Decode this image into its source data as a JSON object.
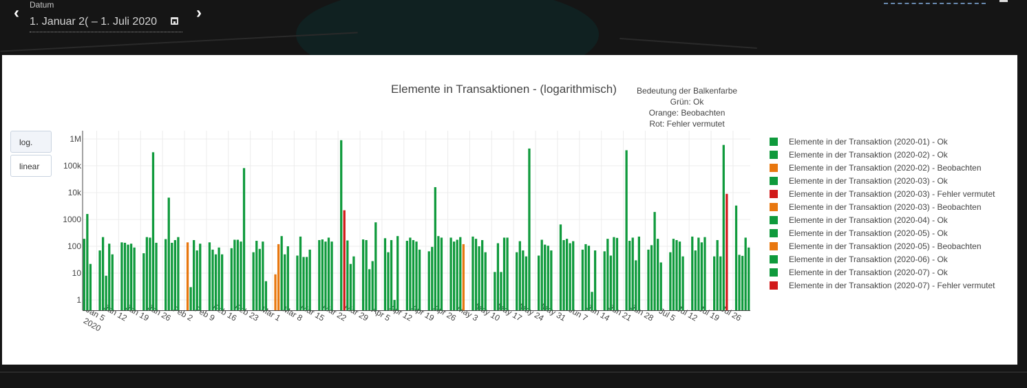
{
  "date_picker": {
    "label": "Datum",
    "value": "1. Januar 2( – 1. Juli 2020",
    "prev_icon": "chevron-left-icon",
    "next_icon": "chevron-right-icon",
    "calendar_icon": "calendar-icon"
  },
  "scale_buttons": {
    "log_label": "log.",
    "linear_label": "linear"
  },
  "colors": {
    "ok": "#0f9a3c",
    "watch": "#e8770f",
    "error": "#d11a1a"
  },
  "legend_note": [
    "Bedeutung der Balkenfarbe",
    "Grün: Ok",
    "Orange: Beobachten",
    "Rot: Fehler vermutet"
  ],
  "chart_data": {
    "type": "bar",
    "title": "Elemente in Transaktionen - (logarithmisch)",
    "y_scale": "log",
    "ylim": [
      0.5,
      1500000
    ],
    "y_ticks": [
      {
        "value": 1,
        "label": "1"
      },
      {
        "value": 10,
        "label": "10"
      },
      {
        "value": 100,
        "label": "100"
      },
      {
        "value": 1000,
        "label": "1000"
      },
      {
        "value": 10000,
        "label": "10k"
      },
      {
        "value": 100000,
        "label": "100k"
      },
      {
        "value": 1000000,
        "label": "1M"
      }
    ],
    "x_start": "2020-01-01",
    "x_end": "2020-07-31",
    "x_ticks": [
      {
        "date": "2020-01-05",
        "label": "Jan 5",
        "sublabel": "2020"
      },
      {
        "date": "2020-01-12",
        "label": "Jan 12"
      },
      {
        "date": "2020-01-19",
        "label": "Jan 19"
      },
      {
        "date": "2020-01-26",
        "label": "Jan 26"
      },
      {
        "date": "2020-02-02",
        "label": "Feb 2"
      },
      {
        "date": "2020-02-09",
        "label": "Feb 9"
      },
      {
        "date": "2020-02-16",
        "label": "Feb 16"
      },
      {
        "date": "2020-02-23",
        "label": "Feb 23"
      },
      {
        "date": "2020-03-01",
        "label": "Mar 1"
      },
      {
        "date": "2020-03-08",
        "label": "Mar 8"
      },
      {
        "date": "2020-03-15",
        "label": "Mar 15"
      },
      {
        "date": "2020-03-22",
        "label": "Mar 22"
      },
      {
        "date": "2020-03-29",
        "label": "Mar 29"
      },
      {
        "date": "2020-04-05",
        "label": "Apr 5"
      },
      {
        "date": "2020-04-12",
        "label": "Apr 12"
      },
      {
        "date": "2020-04-19",
        "label": "Apr 19"
      },
      {
        "date": "2020-04-26",
        "label": "Apr 26"
      },
      {
        "date": "2020-05-03",
        "label": "May 3"
      },
      {
        "date": "2020-05-10",
        "label": "May 10"
      },
      {
        "date": "2020-05-17",
        "label": "May 17"
      },
      {
        "date": "2020-05-24",
        "label": "May 24"
      },
      {
        "date": "2020-05-31",
        "label": "May 31"
      },
      {
        "date": "2020-06-07",
        "label": "Jun 7"
      },
      {
        "date": "2020-06-14",
        "label": "Jun 14"
      },
      {
        "date": "2020-06-21",
        "label": "Jun 21"
      },
      {
        "date": "2020-06-28",
        "label": "Jun 28"
      },
      {
        "date": "2020-07-05",
        "label": "Jul 5"
      },
      {
        "date": "2020-07-12",
        "label": "Jul 12"
      },
      {
        "date": "2020-07-19",
        "label": "Jul 19"
      },
      {
        "date": "2020-07-26",
        "label": "Jul 26"
      }
    ],
    "legend": [
      {
        "name": "Elemente in der Transaktion (2020-01) - Ok",
        "status": "ok"
      },
      {
        "name": "Elemente in der Transaktion (2020-02) - Ok",
        "status": "ok"
      },
      {
        "name": "Elemente in der Transaktion (2020-02) - Beobachten",
        "status": "watch"
      },
      {
        "name": "Elemente in der Transaktion (2020-03) - Ok",
        "status": "ok"
      },
      {
        "name": "Elemente in der Transaktion (2020-03) - Fehler vermutet",
        "status": "error"
      },
      {
        "name": "Elemente in der Transaktion (2020-03) - Beobachten",
        "status": "watch"
      },
      {
        "name": "Elemente in der Transaktion (2020-04) - Ok",
        "status": "ok"
      },
      {
        "name": "Elemente in der Transaktion (2020-05) - Ok",
        "status": "ok"
      },
      {
        "name": "Elemente in der Transaktion (2020-05) - Beobachten",
        "status": "watch"
      },
      {
        "name": "Elemente in der Transaktion (2020-06) - Ok",
        "status": "ok"
      },
      {
        "name": "Elemente in der Transaktion (2020-07) - Ok",
        "status": "ok"
      },
      {
        "name": "Elemente in der Transaktion (2020-07) - Fehler vermutet",
        "status": "error"
      }
    ],
    "bars": [
      {
        "date": "2020-01-01",
        "value": 190,
        "status": "ok"
      },
      {
        "date": "2020-01-02",
        "value": 1600,
        "status": "ok"
      },
      {
        "date": "2020-01-03",
        "value": 22,
        "status": "ok"
      },
      {
        "date": "2020-01-06",
        "value": 70,
        "status": "ok"
      },
      {
        "date": "2020-01-07",
        "value": 220,
        "status": "ok"
      },
      {
        "date": "2020-01-08",
        "value": 8,
        "status": "ok"
      },
      {
        "date": "2020-01-09",
        "value": 125,
        "status": "ok"
      },
      {
        "date": "2020-01-10",
        "value": 50,
        "status": "ok"
      },
      {
        "date": "2020-01-13",
        "value": 140,
        "status": "ok"
      },
      {
        "date": "2020-01-14",
        "value": 135,
        "status": "ok"
      },
      {
        "date": "2020-01-15",
        "value": 115,
        "status": "ok"
      },
      {
        "date": "2020-01-16",
        "value": 125,
        "status": "ok"
      },
      {
        "date": "2020-01-17",
        "value": 90,
        "status": "ok"
      },
      {
        "date": "2020-01-20",
        "value": 55,
        "status": "ok"
      },
      {
        "date": "2020-01-21",
        "value": 220,
        "status": "ok"
      },
      {
        "date": "2020-01-22",
        "value": 210,
        "status": "ok"
      },
      {
        "date": "2020-01-23",
        "value": 320000,
        "status": "ok"
      },
      {
        "date": "2020-01-24",
        "value": 135,
        "status": "ok"
      },
      {
        "date": "2020-01-27",
        "value": 185,
        "status": "ok"
      },
      {
        "date": "2020-01-28",
        "value": 6500,
        "status": "ok"
      },
      {
        "date": "2020-01-29",
        "value": 135,
        "status": "ok"
      },
      {
        "date": "2020-01-30",
        "value": 170,
        "status": "ok"
      },
      {
        "date": "2020-01-31",
        "value": 220,
        "status": "ok"
      },
      {
        "date": "2020-02-03",
        "value": 140,
        "status": "watch"
      },
      {
        "date": "2020-02-04",
        "value": 3,
        "status": "ok"
      },
      {
        "date": "2020-02-05",
        "value": 170,
        "status": "ok"
      },
      {
        "date": "2020-02-06",
        "value": 70,
        "status": "ok"
      },
      {
        "date": "2020-02-07",
        "value": 125,
        "status": "ok"
      },
      {
        "date": "2020-02-10",
        "value": 140,
        "status": "ok"
      },
      {
        "date": "2020-02-11",
        "value": 75,
        "status": "ok"
      },
      {
        "date": "2020-02-12",
        "value": 50,
        "status": "ok"
      },
      {
        "date": "2020-02-13",
        "value": 90,
        "status": "ok"
      },
      {
        "date": "2020-02-14",
        "value": 50,
        "status": "ok"
      },
      {
        "date": "2020-02-17",
        "value": 85,
        "status": "ok"
      },
      {
        "date": "2020-02-18",
        "value": 175,
        "status": "ok"
      },
      {
        "date": "2020-02-19",
        "value": 175,
        "status": "ok"
      },
      {
        "date": "2020-02-20",
        "value": 150,
        "status": "ok"
      },
      {
        "date": "2020-02-21",
        "value": 82000,
        "status": "ok"
      },
      {
        "date": "2020-02-24",
        "value": 60,
        "status": "ok"
      },
      {
        "date": "2020-02-25",
        "value": 160,
        "status": "ok"
      },
      {
        "date": "2020-02-26",
        "value": 80,
        "status": "ok"
      },
      {
        "date": "2020-02-27",
        "value": 150,
        "status": "ok"
      },
      {
        "date": "2020-02-28",
        "value": 5,
        "status": "ok"
      },
      {
        "date": "2020-03-02",
        "value": 9,
        "status": "watch"
      },
      {
        "date": "2020-03-03",
        "value": 120,
        "status": "watch"
      },
      {
        "date": "2020-03-04",
        "value": 240,
        "status": "ok"
      },
      {
        "date": "2020-03-05",
        "value": 50,
        "status": "ok"
      },
      {
        "date": "2020-03-06",
        "value": 100,
        "status": "ok"
      },
      {
        "date": "2020-03-09",
        "value": 45,
        "status": "ok"
      },
      {
        "date": "2020-03-10",
        "value": 230,
        "status": "ok"
      },
      {
        "date": "2020-03-11",
        "value": 40,
        "status": "ok"
      },
      {
        "date": "2020-03-12",
        "value": 40,
        "status": "ok"
      },
      {
        "date": "2020-03-13",
        "value": 75,
        "status": "ok"
      },
      {
        "date": "2020-03-16",
        "value": 170,
        "status": "ok"
      },
      {
        "date": "2020-03-17",
        "value": 180,
        "status": "ok"
      },
      {
        "date": "2020-03-18",
        "value": 150,
        "status": "ok"
      },
      {
        "date": "2020-03-19",
        "value": 210,
        "status": "ok"
      },
      {
        "date": "2020-03-20",
        "value": 150,
        "status": "ok"
      },
      {
        "date": "2020-03-23",
        "value": 900000,
        "status": "ok"
      },
      {
        "date": "2020-03-24",
        "value": 2200,
        "status": "error"
      },
      {
        "date": "2020-03-25",
        "value": 165,
        "status": "ok"
      },
      {
        "date": "2020-03-26",
        "value": 22,
        "status": "ok"
      },
      {
        "date": "2020-03-27",
        "value": 42,
        "status": "ok"
      },
      {
        "date": "2020-03-30",
        "value": 180,
        "status": "ok"
      },
      {
        "date": "2020-03-31",
        "value": 170,
        "status": "ok"
      },
      {
        "date": "2020-04-01",
        "value": 14,
        "status": "ok"
      },
      {
        "date": "2020-04-02",
        "value": 28,
        "status": "ok"
      },
      {
        "date": "2020-04-03",
        "value": 780,
        "status": "ok"
      },
      {
        "date": "2020-04-06",
        "value": 200,
        "status": "ok"
      },
      {
        "date": "2020-04-07",
        "value": 60,
        "status": "ok"
      },
      {
        "date": "2020-04-08",
        "value": 170,
        "status": "ok"
      },
      {
        "date": "2020-04-09",
        "value": 1,
        "status": "ok"
      },
      {
        "date": "2020-04-10",
        "value": 240,
        "status": "ok"
      },
      {
        "date": "2020-04-13",
        "value": 160,
        "status": "ok"
      },
      {
        "date": "2020-04-14",
        "value": 210,
        "status": "ok"
      },
      {
        "date": "2020-04-15",
        "value": 170,
        "status": "ok"
      },
      {
        "date": "2020-04-16",
        "value": 150,
        "status": "ok"
      },
      {
        "date": "2020-04-17",
        "value": 75,
        "status": "ok"
      },
      {
        "date": "2020-04-20",
        "value": 65,
        "status": "ok"
      },
      {
        "date": "2020-04-21",
        "value": 95,
        "status": "ok"
      },
      {
        "date": "2020-04-22",
        "value": 16000,
        "status": "ok"
      },
      {
        "date": "2020-04-23",
        "value": 240,
        "status": "ok"
      },
      {
        "date": "2020-04-24",
        "value": 210,
        "status": "ok"
      },
      {
        "date": "2020-04-27",
        "value": 210,
        "status": "ok"
      },
      {
        "date": "2020-04-28",
        "value": 150,
        "status": "ok"
      },
      {
        "date": "2020-04-29",
        "value": 175,
        "status": "ok"
      },
      {
        "date": "2020-04-30",
        "value": 220,
        "status": "ok"
      },
      {
        "date": "2020-05-01",
        "value": 120,
        "status": "watch"
      },
      {
        "date": "2020-05-04",
        "value": 230,
        "status": "ok"
      },
      {
        "date": "2020-05-05",
        "value": 190,
        "status": "ok"
      },
      {
        "date": "2020-05-06",
        "value": 100,
        "status": "ok"
      },
      {
        "date": "2020-05-07",
        "value": 170,
        "status": "ok"
      },
      {
        "date": "2020-05-08",
        "value": 60,
        "status": "ok"
      },
      {
        "date": "2020-05-11",
        "value": 11,
        "status": "ok"
      },
      {
        "date": "2020-05-12",
        "value": 130,
        "status": "ok"
      },
      {
        "date": "2020-05-13",
        "value": 11,
        "status": "ok"
      },
      {
        "date": "2020-05-14",
        "value": 210,
        "status": "ok"
      },
      {
        "date": "2020-05-15",
        "value": 210,
        "status": "ok"
      },
      {
        "date": "2020-05-18",
        "value": 60,
        "status": "ok"
      },
      {
        "date": "2020-05-19",
        "value": 155,
        "status": "ok"
      },
      {
        "date": "2020-05-20",
        "value": 70,
        "status": "ok"
      },
      {
        "date": "2020-05-21",
        "value": 42,
        "status": "ok"
      },
      {
        "date": "2020-05-22",
        "value": 440000,
        "status": "ok"
      },
      {
        "date": "2020-05-25",
        "value": 45,
        "status": "ok"
      },
      {
        "date": "2020-05-26",
        "value": 175,
        "status": "ok"
      },
      {
        "date": "2020-05-27",
        "value": 115,
        "status": "ok"
      },
      {
        "date": "2020-05-28",
        "value": 105,
        "status": "ok"
      },
      {
        "date": "2020-05-29",
        "value": 70,
        "status": "ok"
      },
      {
        "date": "2020-06-01",
        "value": 650,
        "status": "ok"
      },
      {
        "date": "2020-06-02",
        "value": 170,
        "status": "ok"
      },
      {
        "date": "2020-06-03",
        "value": 190,
        "status": "ok"
      },
      {
        "date": "2020-06-04",
        "value": 130,
        "status": "ok"
      },
      {
        "date": "2020-06-05",
        "value": 155,
        "status": "ok"
      },
      {
        "date": "2020-06-08",
        "value": 75,
        "status": "ok"
      },
      {
        "date": "2020-06-09",
        "value": 120,
        "status": "ok"
      },
      {
        "date": "2020-06-10",
        "value": 105,
        "status": "ok"
      },
      {
        "date": "2020-06-11",
        "value": 2,
        "status": "ok"
      },
      {
        "date": "2020-06-12",
        "value": 70,
        "status": "ok"
      },
      {
        "date": "2020-06-15",
        "value": 65,
        "status": "ok"
      },
      {
        "date": "2020-06-16",
        "value": 190,
        "status": "ok"
      },
      {
        "date": "2020-06-17",
        "value": 45,
        "status": "ok"
      },
      {
        "date": "2020-06-18",
        "value": 220,
        "status": "ok"
      },
      {
        "date": "2020-06-19",
        "value": 205,
        "status": "ok"
      },
      {
        "date": "2020-06-22",
        "value": 380000,
        "status": "ok"
      },
      {
        "date": "2020-06-23",
        "value": 160,
        "status": "ok"
      },
      {
        "date": "2020-06-24",
        "value": 210,
        "status": "ok"
      },
      {
        "date": "2020-06-25",
        "value": 30,
        "status": "ok"
      },
      {
        "date": "2020-06-26",
        "value": 230,
        "status": "ok"
      },
      {
        "date": "2020-06-29",
        "value": 75,
        "status": "ok"
      },
      {
        "date": "2020-06-30",
        "value": 110,
        "status": "ok"
      },
      {
        "date": "2020-07-01",
        "value": 1900,
        "status": "ok"
      },
      {
        "date": "2020-07-02",
        "value": 190,
        "status": "ok"
      },
      {
        "date": "2020-07-03",
        "value": 25,
        "status": "ok"
      },
      {
        "date": "2020-07-06",
        "value": 60,
        "status": "ok"
      },
      {
        "date": "2020-07-07",
        "value": 190,
        "status": "ok"
      },
      {
        "date": "2020-07-08",
        "value": 170,
        "status": "ok"
      },
      {
        "date": "2020-07-09",
        "value": 150,
        "status": "ok"
      },
      {
        "date": "2020-07-10",
        "value": 42,
        "status": "ok"
      },
      {
        "date": "2020-07-13",
        "value": 230,
        "status": "ok"
      },
      {
        "date": "2020-07-14",
        "value": 70,
        "status": "ok"
      },
      {
        "date": "2020-07-15",
        "value": 210,
        "status": "ok"
      },
      {
        "date": "2020-07-16",
        "value": 140,
        "status": "ok"
      },
      {
        "date": "2020-07-17",
        "value": 220,
        "status": "ok"
      },
      {
        "date": "2020-07-20",
        "value": 42,
        "status": "ok"
      },
      {
        "date": "2020-07-21",
        "value": 170,
        "status": "ok"
      },
      {
        "date": "2020-07-22",
        "value": 42,
        "status": "ok"
      },
      {
        "date": "2020-07-23",
        "value": 600000,
        "status": "ok"
      },
      {
        "date": "2020-07-24",
        "value": 9000,
        "status": "error"
      },
      {
        "date": "2020-07-27",
        "value": 3300,
        "status": "ok"
      },
      {
        "date": "2020-07-28",
        "value": 48,
        "status": "ok"
      },
      {
        "date": "2020-07-29",
        "value": 44,
        "status": "ok"
      },
      {
        "date": "2020-07-30",
        "value": 210,
        "status": "ok"
      },
      {
        "date": "2020-07-31",
        "value": 90,
        "status": "ok"
      }
    ]
  }
}
